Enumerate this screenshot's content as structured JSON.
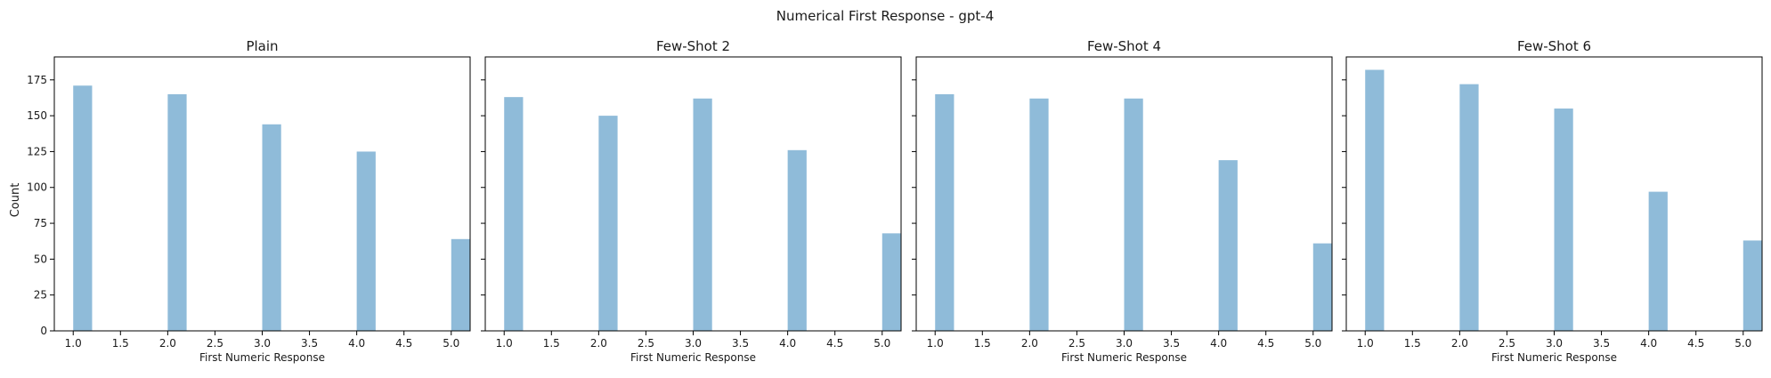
{
  "figure": {
    "suptitle": "Numerical First Response - gpt-4",
    "ylabel": "Count",
    "xlabel": "First Numeric Response"
  },
  "colors": {
    "bar": "#8fbbd9",
    "axis": "#000000",
    "text": "#1a1a1a"
  },
  "chart_data": [
    {
      "type": "bar",
      "title": "Plain",
      "x": [
        1,
        2,
        3,
        4,
        5
      ],
      "values": [
        171,
        165,
        144,
        125,
        64
      ],
      "xlabel": "First Numeric Response",
      "ylabel": "Count",
      "xlim": [
        0.8,
        5.2
      ],
      "ylim": [
        0,
        191
      ],
      "xticks": [
        "1.0",
        "1.5",
        "2.0",
        "2.5",
        "3.0",
        "3.5",
        "4.0",
        "4.5",
        "5.0"
      ],
      "yticks": [
        "0",
        "25",
        "50",
        "75",
        "100",
        "125",
        "150",
        "175"
      ],
      "grid": false
    },
    {
      "type": "bar",
      "title": "Few-Shot 2",
      "x": [
        1,
        2,
        3,
        4,
        5
      ],
      "values": [
        163,
        150,
        162,
        126,
        68
      ],
      "xlabel": "First Numeric Response",
      "xlim": [
        0.8,
        5.2
      ],
      "ylim": [
        0,
        191
      ],
      "xticks": [
        "1.0",
        "1.5",
        "2.0",
        "2.5",
        "3.0",
        "3.5",
        "4.0",
        "4.5",
        "5.0"
      ],
      "grid": false
    },
    {
      "type": "bar",
      "title": "Few-Shot 4",
      "x": [
        1,
        2,
        3,
        4,
        5
      ],
      "values": [
        165,
        162,
        162,
        119,
        61
      ],
      "xlabel": "First Numeric Response",
      "xlim": [
        0.8,
        5.2
      ],
      "ylim": [
        0,
        191
      ],
      "xticks": [
        "1.0",
        "1.5",
        "2.0",
        "2.5",
        "3.0",
        "3.5",
        "4.0",
        "4.5",
        "5.0"
      ],
      "grid": false
    },
    {
      "type": "bar",
      "title": "Few-Shot 6",
      "x": [
        1,
        2,
        3,
        4,
        5
      ],
      "values": [
        182,
        172,
        155,
        97,
        63
      ],
      "xlabel": "First Numeric Response",
      "xlim": [
        0.8,
        5.2
      ],
      "ylim": [
        0,
        191
      ],
      "xticks": [
        "1.0",
        "1.5",
        "2.0",
        "2.5",
        "3.0",
        "3.5",
        "4.0",
        "4.5",
        "5.0"
      ],
      "grid": false
    }
  ]
}
